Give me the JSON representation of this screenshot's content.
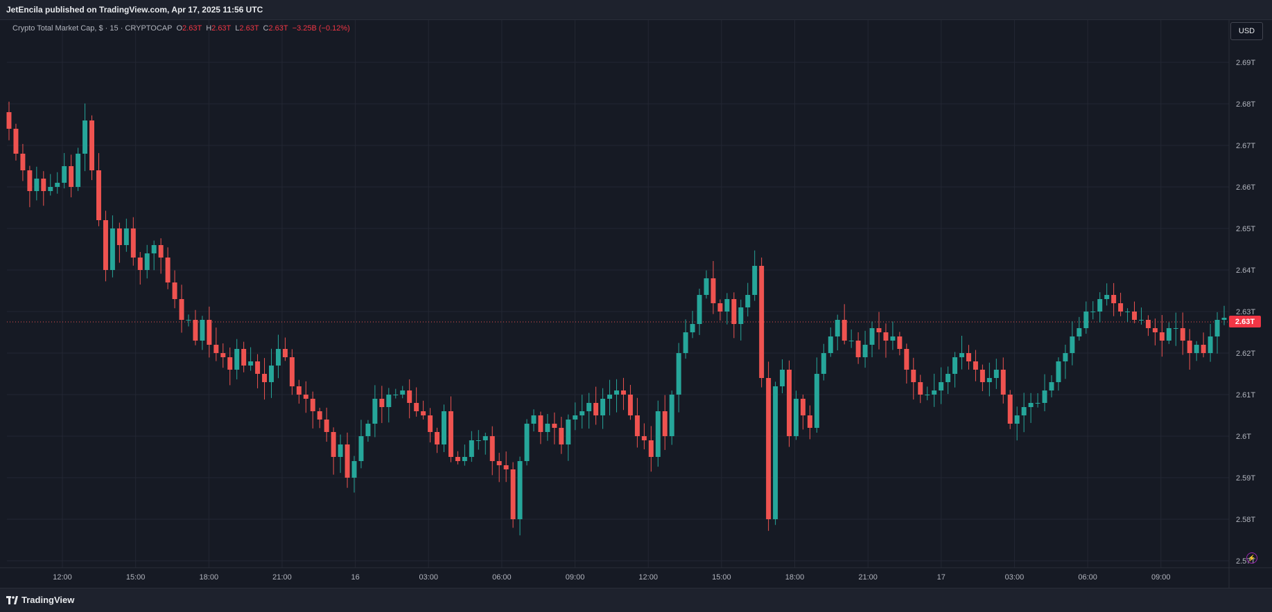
{
  "header": {
    "publisher": "JetEncila published on TradingView.com, Apr 17, 2025 11:56 UTC"
  },
  "legend": {
    "symbol": "Crypto Total Market Cap, $ · 15 · CRYPTOCAP",
    "o_label": "O",
    "o_value": "2.63T",
    "h_label": "H",
    "h_value": "2.63T",
    "l_label": "L",
    "l_value": "2.63T",
    "c_label": "C",
    "c_value": "2.63T",
    "change": "−3.25B (−0.12%)"
  },
  "currency_button": "USD",
  "last_price_tag": "2.63T",
  "footer": {
    "brand": "TradingView"
  },
  "colors": {
    "up": "#26a69a",
    "down": "#ef5350",
    "bg": "#161a24",
    "grid": "#232733",
    "axis_text": "#b2b5be"
  },
  "icons": {
    "flash": "lightning-icon",
    "logo": "tradingview-logo-icon"
  },
  "chart_data": {
    "type": "candlestick",
    "title": "Crypto Total Market Cap, $ · 15 · CRYPTOCAP",
    "ylabel": "",
    "ylim": [
      2.565,
      2.697
    ],
    "y_ticks": [
      "2.57T",
      "2.58T",
      "2.59T",
      "2.6T",
      "2.61T",
      "2.62T",
      "2.63T",
      "2.64T",
      "2.65T",
      "2.66T",
      "2.67T",
      "2.68T",
      "2.69T"
    ],
    "y_tick_values": [
      2.57,
      2.58,
      2.59,
      2.6,
      2.61,
      2.62,
      2.63,
      2.64,
      2.65,
      2.66,
      2.67,
      2.68,
      2.69
    ],
    "x_ticks": [
      "12:00",
      "15:00",
      "18:00",
      "21:00",
      "16",
      "03:00",
      "06:00",
      "09:00",
      "12:00",
      "15:00",
      "18:00",
      "21:00",
      "17",
      "03:00",
      "06:00",
      "09:00"
    ],
    "last_price": 2.6275,
    "close_series": [
      2.674,
      2.668,
      2.664,
      2.659,
      2.662,
      2.659,
      2.66,
      2.661,
      2.665,
      2.66,
      2.668,
      2.676,
      2.664,
      2.652,
      2.64,
      2.65,
      2.646,
      2.65,
      2.643,
      2.64,
      2.644,
      2.646,
      2.643,
      2.637,
      2.633,
      2.628,
      2.628,
      2.623,
      2.628,
      2.622,
      2.62,
      2.619,
      2.616,
      2.621,
      2.617,
      2.618,
      2.615,
      2.613,
      2.617,
      2.621,
      2.619,
      2.612,
      2.61,
      2.609,
      2.606,
      2.604,
      2.601,
      2.595,
      2.598,
      2.59,
      2.594,
      2.6,
      2.603,
      2.609,
      2.607,
      2.61,
      2.61,
      2.611,
      2.608,
      2.606,
      2.605,
      2.601,
      2.598,
      2.606,
      2.595,
      2.594,
      2.595,
      2.599,
      2.599,
      2.6,
      2.594,
      2.593,
      2.592,
      2.58,
      2.594,
      2.603,
      2.605,
      2.601,
      2.603,
      2.602,
      2.598,
      2.604,
      2.605,
      2.606,
      2.608,
      2.605,
      2.609,
      2.61,
      2.611,
      2.61,
      2.605,
      2.6,
      2.599,
      2.595,
      2.606,
      2.6,
      2.61,
      2.62,
      2.625,
      2.627,
      2.634,
      2.638,
      2.632,
      2.63,
      2.633,
      2.627,
      2.631,
      2.634,
      2.641,
      2.614,
      2.58,
      2.612,
      2.616,
      2.6,
      2.609,
      2.605,
      2.602,
      2.615,
      2.62,
      2.624,
      2.628,
      2.623,
      2.623,
      2.619,
      2.622,
      2.626,
      2.625,
      2.623,
      2.624,
      2.621,
      2.616,
      2.613,
      2.61,
      2.61,
      2.611,
      2.613,
      2.615,
      2.619,
      2.62,
      2.618,
      2.616,
      2.613,
      2.614,
      2.616,
      2.61,
      2.603,
      2.605,
      2.607,
      2.608,
      2.608,
      2.611,
      2.613,
      2.618,
      2.62,
      2.624,
      2.626,
      2.63,
      2.63,
      2.633,
      2.634,
      2.632,
      2.63,
      2.63,
      2.628,
      2.628,
      2.626,
      2.625,
      2.623,
      2.626,
      2.626,
      2.623,
      2.62,
      2.622,
      2.62,
      2.624,
      2.628,
      2.6285
    ]
  }
}
